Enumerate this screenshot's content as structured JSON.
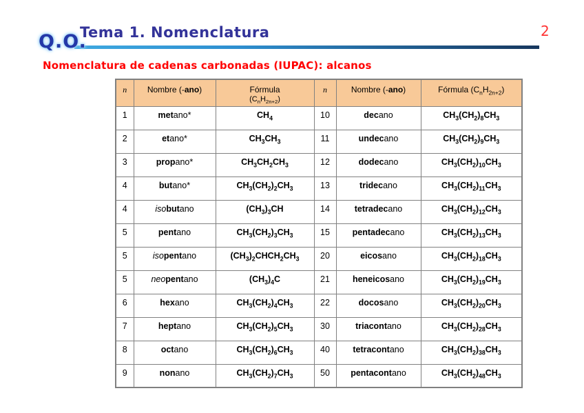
{
  "page": {
    "number": "2"
  },
  "header": {
    "logo": "Q.O.",
    "title": "Tema 1. Nomenclatura"
  },
  "subtitle": "Nomenclatura de cadenas carbonadas (IUPAC): alcanos",
  "colors": {
    "title_blue": "#333399",
    "logo_blue": "#2438a8",
    "logo_glow": "#9cd4f7",
    "accent_red": "#ff0000",
    "page_number_red": "#ff3333",
    "table_header_bg": "#f8c998",
    "table_border": "#808080",
    "rule_gradient_start": "#3fa9e0",
    "rule_gradient_end": "#17375e"
  },
  "table": {
    "header_left": {
      "n": "n",
      "name": [
        {
          "t": "Nombre (-"
        },
        {
          "t": "ano",
          "b": 1
        },
        {
          "t": ")"
        }
      ],
      "formula_line1": "Fórmula",
      "formula_line2": "(C~n~H~2n+2~)"
    },
    "header_right": {
      "n": "n",
      "name": [
        {
          "t": "Nombre (-"
        },
        {
          "t": "ano",
          "b": 1
        },
        {
          "t": ")"
        }
      ],
      "formula": "Fórmula (C~n~H~2n+2~)"
    },
    "rows": [
      {
        "left": {
          "n": "1",
          "name": [
            {
              "t": "met",
              "b": 1
            },
            {
              "t": "ano*"
            }
          ],
          "formula": "CH~4~"
        },
        "right": {
          "n": "10",
          "name": [
            {
              "t": "dec",
              "b": 1
            },
            {
              "t": "ano"
            }
          ],
          "formula": "CH~3~(CH~2~)~8~CH~3~"
        }
      },
      {
        "left": {
          "n": "2",
          "name": [
            {
              "t": "et",
              "b": 1
            },
            {
              "t": "ano*"
            }
          ],
          "formula": "CH~3~CH~3~"
        },
        "right": {
          "n": "11",
          "name": [
            {
              "t": "undec",
              "b": 1
            },
            {
              "t": "ano"
            }
          ],
          "formula": "CH~3~(CH~2~)~9~CH~3~"
        }
      },
      {
        "left": {
          "n": "3",
          "name": [
            {
              "t": "prop",
              "b": 1
            },
            {
              "t": "ano*"
            }
          ],
          "formula": "CH~3~CH~2~CH~3~"
        },
        "right": {
          "n": "12",
          "name": [
            {
              "t": "dodec",
              "b": 1
            },
            {
              "t": "ano"
            }
          ],
          "formula": "CH~3~(CH~2~)~10~CH~3~"
        }
      },
      {
        "left": {
          "n": "4",
          "name": [
            {
              "t": "but",
              "b": 1
            },
            {
              "t": "ano*"
            }
          ],
          "formula": "CH~3~(CH~2~)~2~CH~3~"
        },
        "right": {
          "n": "13",
          "name": [
            {
              "t": "tridec",
              "b": 1
            },
            {
              "t": "ano"
            }
          ],
          "formula": "CH~3~(CH~2~)~11~CH~3~"
        }
      },
      {
        "left": {
          "n": "4",
          "name": [
            {
              "t": "iso",
              "i": 1
            },
            {
              "t": "but",
              "b": 1
            },
            {
              "t": "ano"
            }
          ],
          "formula": "(CH~3~)~3~CH"
        },
        "right": {
          "n": "14",
          "name": [
            {
              "t": "tetradec",
              "b": 1
            },
            {
              "t": "ano"
            }
          ],
          "formula": "CH~3~(CH~2~)~12~CH~3~"
        }
      },
      {
        "left": {
          "n": "5",
          "name": [
            {
              "t": "pent",
              "b": 1
            },
            {
              "t": "ano"
            }
          ],
          "formula": "CH~3~(CH~2~)~3~CH~3~"
        },
        "right": {
          "n": "15",
          "name": [
            {
              "t": "pentadec",
              "b": 1
            },
            {
              "t": "ano"
            }
          ],
          "formula": "CH~3~(CH~2~)~13~CH~3~"
        }
      },
      {
        "left": {
          "n": "5",
          "name": [
            {
              "t": "iso",
              "i": 1
            },
            {
              "t": "pent",
              "b": 1
            },
            {
              "t": "ano"
            }
          ],
          "formula": "(CH~3~)~2~CHCH~2~CH~3~"
        },
        "right": {
          "n": "20",
          "name": [
            {
              "t": "eicos",
              "b": 1
            },
            {
              "t": "ano"
            }
          ],
          "formula": "CH~3~(CH~2~)~18~CH~3~"
        }
      },
      {
        "left": {
          "n": "5",
          "name": [
            {
              "t": "neo",
              "i": 1
            },
            {
              "t": "pent",
              "b": 1
            },
            {
              "t": "ano"
            }
          ],
          "formula": "(CH~3~)~4~C"
        },
        "right": {
          "n": "21",
          "name": [
            {
              "t": "heneicos",
              "b": 1
            },
            {
              "t": "ano"
            }
          ],
          "formula": "CH~3~(CH~2~)~19~CH~3~"
        }
      },
      {
        "left": {
          "n": "6",
          "name": [
            {
              "t": "hex",
              "b": 1
            },
            {
              "t": "ano"
            }
          ],
          "formula": "CH~3~(CH~2~)~4~CH~3~"
        },
        "right": {
          "n": "22",
          "name": [
            {
              "t": "docos",
              "b": 1
            },
            {
              "t": "ano"
            }
          ],
          "formula": "CH~3~(CH~2~)~20~CH~3~"
        }
      },
      {
        "left": {
          "n": "7",
          "name": [
            {
              "t": "hept",
              "b": 1
            },
            {
              "t": "ano"
            }
          ],
          "formula": "CH~3~(CH~2~)~5~CH~3~"
        },
        "right": {
          "n": "30",
          "name": [
            {
              "t": "triacont",
              "b": 1
            },
            {
              "t": "ano"
            }
          ],
          "formula": "CH~3~(CH~2~)~28~CH~3~"
        }
      },
      {
        "left": {
          "n": "8",
          "name": [
            {
              "t": "oct",
              "b": 1
            },
            {
              "t": "ano"
            }
          ],
          "formula": "CH~3~(CH~2~)~6~CH~3~"
        },
        "right": {
          "n": "40",
          "name": [
            {
              "t": "tetracont",
              "b": 1
            },
            {
              "t": "ano"
            }
          ],
          "formula": "CH~3~(CH~2~)~38~CH~3~"
        }
      },
      {
        "left": {
          "n": "9",
          "name": [
            {
              "t": "non",
              "b": 1
            },
            {
              "t": "ano"
            }
          ],
          "formula": "CH~3~(CH~2~)~7~CH~3~"
        },
        "right": {
          "n": "50",
          "name": [
            {
              "t": "pentacont",
              "b": 1
            },
            {
              "t": "ano"
            }
          ],
          "formula": "CH~3~(CH~2~)~48~CH~3~"
        }
      }
    ]
  }
}
